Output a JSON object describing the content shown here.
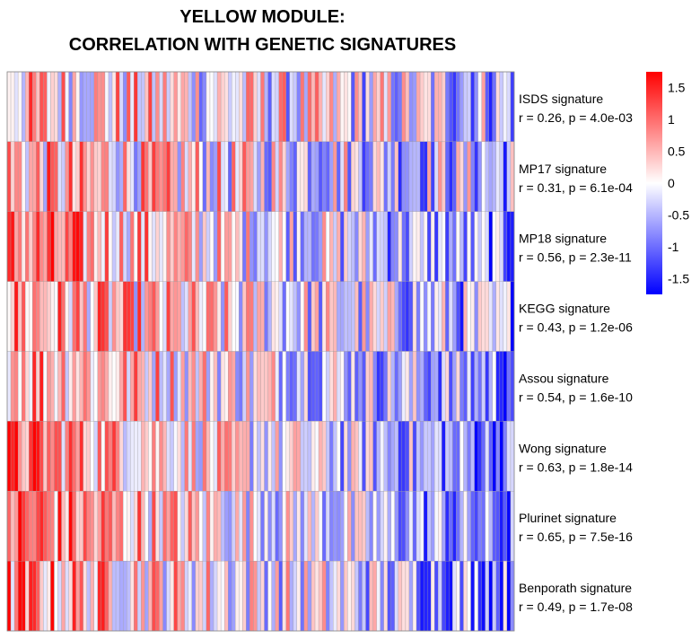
{
  "title_line1": "YELLOW MODULE:",
  "title_line2": "CORRELATION WITH GENETIC SIGNATURES",
  "chart_data": {
    "type": "heatmap",
    "n_columns": 140,
    "rows": [
      {
        "name": "ISDS signature",
        "stat": "r = 0.26, p = 4.0e-03",
        "r": 0.26
      },
      {
        "name": "MP17 signature",
        "stat": "r = 0.31, p = 6.1e-04",
        "r": 0.31
      },
      {
        "name": "MP18 signature",
        "stat": "r = 0.56, p = 2.3e-11",
        "r": 0.56
      },
      {
        "name": "KEGG signature",
        "stat": "r = 0.43, p = 1.2e-06",
        "r": 0.43
      },
      {
        "name": "Assou signature",
        "stat": "r = 0.54, p = 1.6e-10",
        "r": 0.54
      },
      {
        "name": "Wong signature",
        "stat": "r = 0.63, p = 1.8e-14",
        "r": 0.63
      },
      {
        "name": "Plurinet signature",
        "stat": "r = 0.65, p = 7.5e-16",
        "r": 0.65
      },
      {
        "name": "Benporath signature",
        "stat": "r = 0.49, p = 1.7e-08",
        "r": 0.49
      }
    ],
    "colorbar": {
      "min": -1.75,
      "max": 1.75,
      "ticks": [
        "1.5",
        "1",
        "0.5",
        "0",
        "-0.5",
        "-1",
        "-1.5"
      ],
      "tick_values": [
        1.5,
        1,
        0.5,
        0,
        -0.5,
        -1,
        -1.5
      ],
      "low_color": "#0000ff",
      "mid_color": "#ffffff",
      "high_color": "#ff0000"
    }
  }
}
